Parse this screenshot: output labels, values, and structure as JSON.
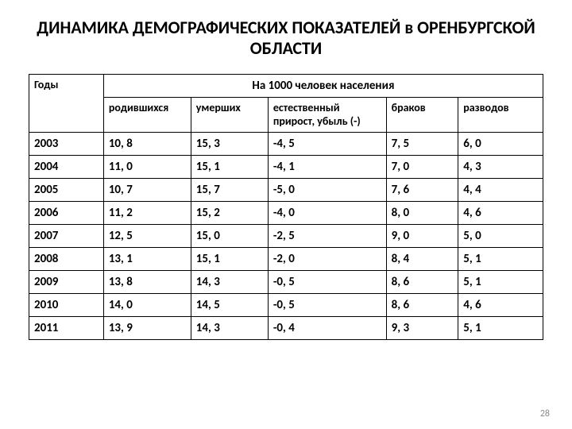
{
  "title": "ДИНАМИКА ДЕМОГРАФИЧЕСКИХ ПОКАЗАТЕЛЕЙ в ОРЕНБУРГСКОЙ ОБЛАСТИ",
  "page_number": "28",
  "table": {
    "type": "table",
    "background_color": "#ffffff",
    "border_color": "#000000",
    "text_color": "#000000",
    "header_fontsize": 15,
    "cell_fontsize": 15,
    "font_weight": "700",
    "super_header": "На 1000 человек населения",
    "row_label_header": "Годы",
    "columns": [
      "родившихся",
      "умерших",
      "естественный прирост, убыль (-)",
      "браков",
      "разводов"
    ],
    "col_widths_pct": [
      14.5,
      17,
      15,
      23,
      14,
      16.5
    ],
    "rows": [
      {
        "year": "2003",
        "v": [
          "10, 8",
          "15, 3",
          "-4, 5",
          "7, 5",
          "6, 0"
        ]
      },
      {
        "year": "2004",
        "v": [
          "11, 0",
          "15, 1",
          "-4, 1",
          "7, 0",
          "4, 3"
        ]
      },
      {
        "year": "2005",
        "v": [
          "10, 7",
          "15, 7",
          "-5, 0",
          "7, 6",
          "4, 4"
        ]
      },
      {
        "year": "2006",
        "v": [
          "11, 2",
          "15, 2",
          "-4, 0",
          "8, 0",
          "4, 6"
        ]
      },
      {
        "year": "2007",
        "v": [
          "12, 5",
          "15, 0",
          "-2, 5",
          "9, 0",
          "5, 0"
        ]
      },
      {
        "year": "2008",
        "v": [
          "13, 1",
          "15, 1",
          "-2, 0",
          "8, 4",
          "5, 1"
        ]
      },
      {
        "year": "2009",
        "v": [
          "13, 8",
          "14, 3",
          "-0, 5",
          "8, 6",
          "5, 1"
        ]
      },
      {
        "year": "2010",
        "v": [
          "14, 0",
          "14, 5",
          "-0, 5",
          "8, 6",
          "4, 6"
        ]
      },
      {
        "year": "2011",
        "v": [
          "13, 9",
          "14, 3",
          "-0, 4",
          "9, 3",
          "5, 1"
        ]
      }
    ]
  }
}
